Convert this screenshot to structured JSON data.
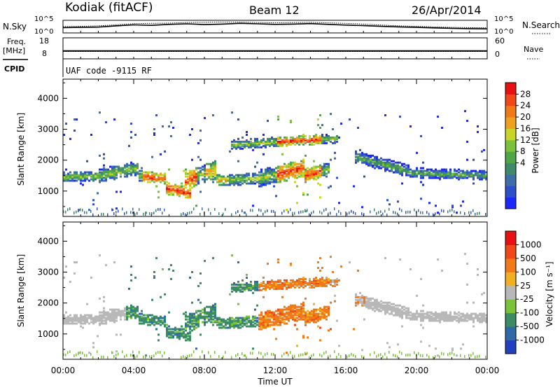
{
  "header": {
    "station": "Kodiak (fitACF)",
    "beam": "Beam 12",
    "date": "26/Apr/2014",
    "cpid_label": "CPID",
    "cpid_text": "UAF code -9115 RF"
  },
  "chart_data": [
    {
      "type": "line",
      "name": "noise-panel",
      "left_label": "N.Sky",
      "right_label": "N.Search",
      "yticks": [
        "10^5",
        "10^0"
      ],
      "right_yticks": [
        "10^5",
        "10^0"
      ],
      "series": [
        {
          "name": "N.Sky",
          "style": "solid",
          "values": [
            2.1,
            2.2,
            2.3,
            2.8,
            3.2,
            3.0,
            3.4,
            3.6,
            3.3,
            3.5,
            3.8,
            3.6,
            3.4,
            3.5,
            3.7,
            3.4,
            3.1,
            2.9,
            2.6,
            2.4,
            2.2,
            2.0,
            1.8,
            1.7,
            1.6
          ]
        },
        {
          "name": "N.Search",
          "style": "dotted",
          "values": [
            2.5,
            2.6,
            2.8,
            3.2,
            3.7,
            3.8,
            3.9,
            4.1,
            4.2,
            4.3,
            4.3,
            4.1,
            4.0,
            4.1,
            4.2,
            4.0,
            3.8,
            3.5,
            3.1,
            2.8,
            2.6,
            2.4,
            2.2,
            2.1,
            2.0
          ]
        }
      ]
    },
    {
      "type": "line",
      "name": "frequency-panel",
      "left_label": "Freq.",
      "left_unit": "[MHz]",
      "right_label": "Nave",
      "yticks": [
        "18",
        "8"
      ],
      "right_yticks": [
        "60",
        "0"
      ],
      "series": [
        {
          "name": "Freq.",
          "style": "solid",
          "constant": 10.5
        },
        {
          "name": "Nave",
          "style": "dotted",
          "constant": 21
        }
      ]
    },
    {
      "type": "heatmap",
      "name": "power-panel",
      "ylabel": "Slant Range [km]",
      "yticks": [
        "4000",
        "3000",
        "2000",
        "1000"
      ],
      "ylim": [
        180,
        4620
      ],
      "colorbar_label": "Power [dB]",
      "colorbar_ticks": [
        "28",
        "24",
        "20",
        "16",
        "12",
        "8",
        "4"
      ],
      "colorbar_colors": [
        "#1a28ff",
        "#2f4fc8",
        "#3c6ea8",
        "#3f8a68",
        "#4ea648",
        "#79c23a",
        "#c8d428",
        "#f0a020",
        "#f07a18",
        "#f04818",
        "#e81010"
      ],
      "vmin": 0,
      "vmax": 32
    },
    {
      "type": "heatmap",
      "name": "velocity-panel",
      "ylabel": "Slant Range [km]",
      "yticks": [
        "4000",
        "3000",
        "2000",
        "1000"
      ],
      "ylim": [
        180,
        4620
      ],
      "xticks": [
        "00:00",
        "04:00",
        "08:00",
        "12:00",
        "16:00",
        "20:00",
        "00:00"
      ],
      "xlabel": "Time UT",
      "colorbar_label": "Velocity [m s⁻¹]",
      "colorbar_ticks": [
        "1000",
        "500",
        "100",
        "25",
        "-25",
        "-100",
        "-500",
        "-1000"
      ],
      "colorbar_colors": [
        "#2040c0",
        "#2f6aa8",
        "#3a8c62",
        "#7ac238",
        "#b8b8b8",
        "#f0b020",
        "#f07a18",
        "#f04818",
        "#e81010"
      ]
    }
  ]
}
